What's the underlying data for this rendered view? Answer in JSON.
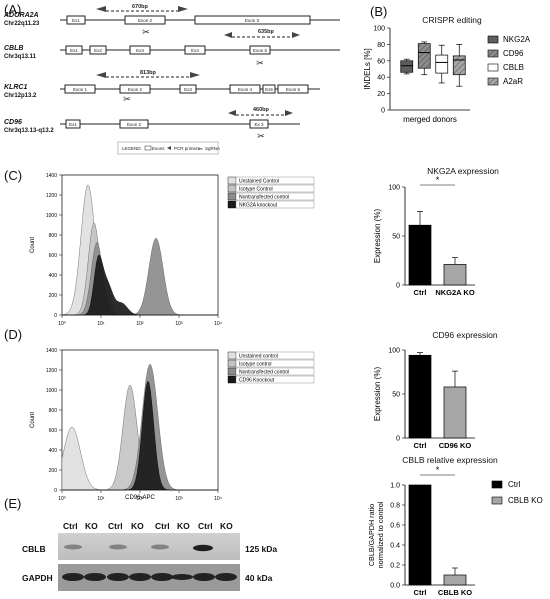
{
  "panels": {
    "A": "(A)",
    "B": "(B)",
    "C": "(C)",
    "D": "(D)",
    "E": "(E)"
  },
  "genes": [
    {
      "name": "ADORA2A",
      "chr": "Chr22q11.23",
      "product": "670bp",
      "exons": [
        "Ex1",
        "Exon 2",
        "Exon 3"
      ]
    },
    {
      "name": "CBLB",
      "chr": "Chr3q13.11",
      "product": "635bp",
      "exons": [
        "Ex1",
        "Ex2",
        "Ex3",
        "Ex4",
        "Exon 5"
      ]
    },
    {
      "name": "KLRC1",
      "chr": "Chr12p13.2",
      "product": "813bp",
      "exons": [
        "Exon 1",
        "Exon 2",
        "Ex3",
        "Exon 4",
        "Ex5",
        "Exon 6"
      ]
    },
    {
      "name": "CD96",
      "chr": "Chr3q13.13-q13.2",
      "product": "460bp",
      "exons": [
        "Ex1",
        "Exon 2",
        "Ex 3"
      ]
    }
  ],
  "legend_a": {
    "prefix": "LEGEND:",
    "exons": "Exons",
    "primers": "PCR primers",
    "sgrna": "SgRNA"
  },
  "colors": {
    "dark": "#1a1a1a",
    "mid": "#8c8c8c",
    "light": "#e2e2e2",
    "gray": "#a6a6a6",
    "darkgray": "#5e5e5e"
  },
  "histogram_c": {
    "xlabel": "NKG2A-FITC",
    "ylabel": "Count",
    "legend": [
      "Unstained Control",
      "Isotype Control",
      "Nontransfected control",
      "NKG2A knockout"
    ]
  },
  "histogram_d": {
    "xlabel": "CD96-APC",
    "ylabel": "Count",
    "legend": [
      "Unstained control",
      "Isotype control",
      "Nontransfected control",
      "CD96 Knockout"
    ]
  },
  "hist_axis": {
    "x_ticks": [
      "10⁰",
      "10¹",
      "10²",
      "10³",
      "10⁴"
    ],
    "y_ticks": [
      "0",
      "200",
      "400",
      "600",
      "800",
      "1000",
      "1200",
      "1400"
    ]
  },
  "western": {
    "lanes": [
      "Ctrl",
      "KO",
      "Ctrl",
      "KO",
      "Ctrl",
      "KO",
      "Ctrl",
      "KO"
    ],
    "rows": [
      {
        "label": "CBLB",
        "size": "125 kDa"
      },
      {
        "label": "GAPDH",
        "size": "40 kDa"
      }
    ]
  },
  "chart_data": [
    {
      "type": "box",
      "title": "CRISPR editing",
      "xlabel": "merged donors",
      "ylabel": "INDELs [%]",
      "ylim": [
        0,
        100
      ],
      "yticks": [
        0,
        20,
        40,
        60,
        80,
        100
      ],
      "series": [
        {
          "name": "NKG2A",
          "q1": 46,
          "median": 54,
          "q3": 60,
          "min": 44,
          "max": 62,
          "color": "#5e5e5e"
        },
        {
          "name": "CD96",
          "q1": 51,
          "median": 70,
          "q3": 81,
          "min": 43,
          "max": 83,
          "color": "#8c8c8c"
        },
        {
          "name": "CBLB",
          "q1": 45,
          "median": 58,
          "q3": 67,
          "min": 33,
          "max": 79,
          "color": "#ffffff"
        },
        {
          "name": "A2aR",
          "q1": 43,
          "median": 61,
          "q3": 66,
          "min": 29,
          "max": 80,
          "color": "#a6a6a6"
        }
      ],
      "legend_position": "right"
    },
    {
      "type": "bar",
      "title": "NKG2A expression",
      "ylabel": "Expression (%)",
      "ylim": [
        0,
        100
      ],
      "yticks": [
        0,
        50,
        100
      ],
      "categories": [
        "Ctrl",
        "NKG2A KO"
      ],
      "values": [
        61,
        21
      ],
      "errors": [
        14,
        7
      ],
      "colors": [
        "#000000",
        "#a6a6a6"
      ],
      "significance": "*"
    },
    {
      "type": "bar",
      "title": "CD96 expression",
      "ylabel": "Expression (%)",
      "ylim": [
        0,
        100
      ],
      "yticks": [
        0,
        50,
        100
      ],
      "categories": [
        "Ctrl",
        "CD96 KO"
      ],
      "values": [
        94,
        58
      ],
      "errors": [
        3,
        18
      ],
      "colors": [
        "#000000",
        "#a6a6a6"
      ]
    },
    {
      "type": "bar",
      "title": "CBLB relative expression",
      "ylabel": "CBLB/GAPDH ratio normalized to control",
      "ylim": [
        0,
        1.0
      ],
      "yticks": [
        0.0,
        0.2,
        0.4,
        0.6,
        0.8,
        1.0
      ],
      "categories": [
        "Ctrl",
        "CBLB KO"
      ],
      "values": [
        1.0,
        0.1
      ],
      "errors": [
        0,
        0.07
      ],
      "colors": [
        "#000000",
        "#a6a6a6"
      ],
      "significance": "*",
      "legend": [
        {
          "name": "Ctrl",
          "color": "#000000"
        },
        {
          "name": "CBLB KO",
          "color": "#a6a6a6"
        }
      ],
      "legend_position": "right"
    }
  ]
}
